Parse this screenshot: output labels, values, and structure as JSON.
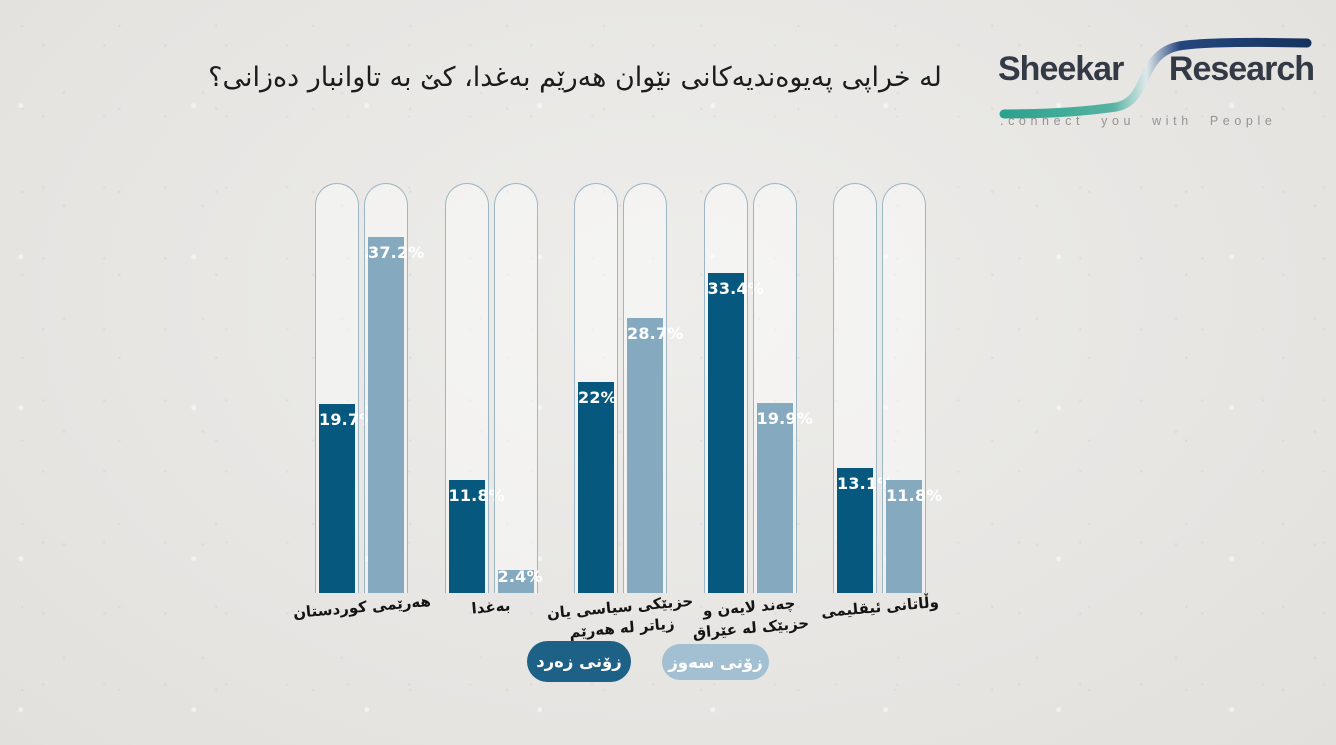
{
  "title": "له خراپی پەیوەندیەکانی نێوان هەرێم بەغدا، کێ به تاوانبار دەزانی؟",
  "logo": {
    "brand_first": "Sheekar",
    "brand_second": "Research",
    "tagline": ".connect you with People"
  },
  "legend": {
    "zerd": "زۆنی زەرد",
    "sewz": "زۆنی سەوز"
  },
  "colors": {
    "bar_dark": "#07587e",
    "bar_light": "#85aabf",
    "track_outline": "#9cb6c4",
    "legend_dark": "#1d6186",
    "legend_light": "#a2c0d2",
    "background": "#e8e7e4",
    "logo_text": "#333a45",
    "logo_teal": "#2aa28e",
    "logo_navy": "#16335e"
  },
  "chart_data": {
    "type": "bar",
    "title": "له خراپی پەیوەندیەکانی نێوان هەرێم بەغدا، کێ به تاوانبار دەزانی؟",
    "categories": [
      [
        "هەرێمی کوردستان"
      ],
      [
        "بەغدا"
      ],
      [
        "حزبێکی سیاسی یان",
        "زیاتر له هەرێم"
      ],
      [
        "چەند لایەن و",
        "حزبێک له عێراق"
      ],
      [
        "وڵاتانی ئیقلیمی"
      ]
    ],
    "series": [
      {
        "name": "زۆنی زەرد",
        "color": "#07587e",
        "values": [
          19.7,
          11.8,
          22,
          33.4,
          13.1
        ],
        "labels": [
          "19.7%",
          "11.8%",
          "22%",
          "33.4%",
          "13.1%"
        ]
      },
      {
        "name": "زۆنی سەوز",
        "color": "#85aabf",
        "values": [
          37.2,
          2.4,
          28.7,
          19.9,
          11.8
        ],
        "labels": [
          "37.2%",
          "2.4%",
          "28.7%",
          "19.9%",
          "11.8%"
        ]
      }
    ],
    "value_suffix": "%",
    "ylim": [
      0,
      42.8
    ],
    "grid": false,
    "legend_position": "bottom",
    "xlabel": "",
    "ylabel": ""
  }
}
